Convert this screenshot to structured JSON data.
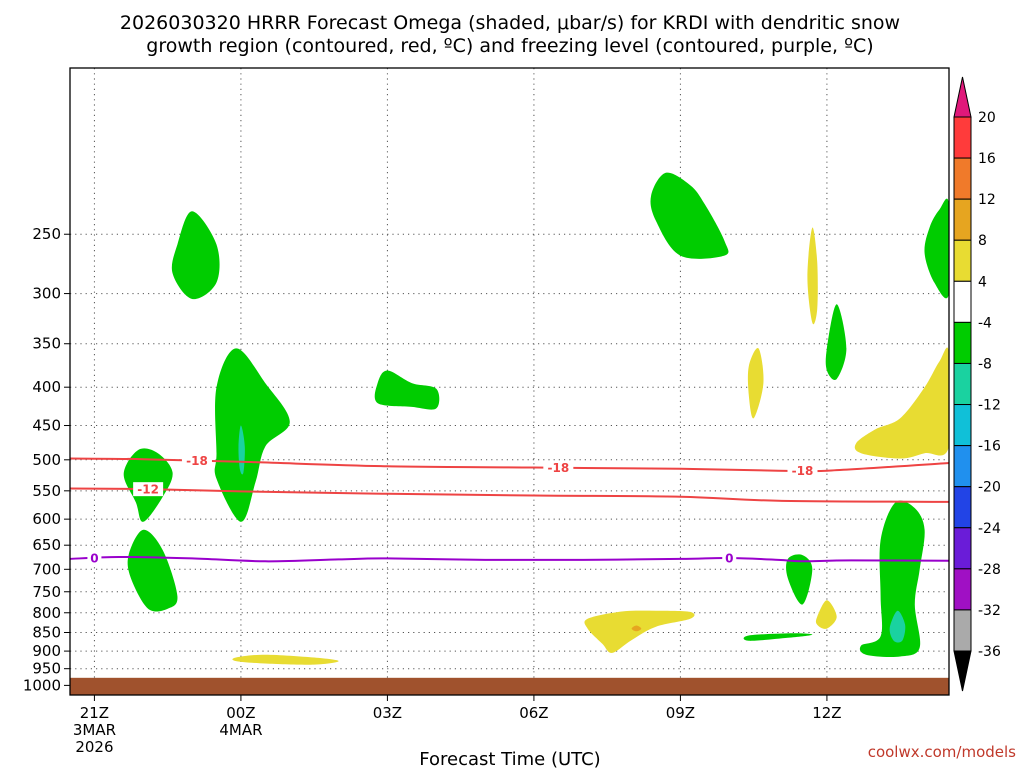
{
  "chart_data": {
    "type": "time-height contour",
    "title_line1": "2026030320 HRRR Forecast Omega (shaded, μbar/s) for KRDI with dendritic snow",
    "title_line2": "growth region (contoured, red, ºC) and freezing level (contoured, purple, ºC)",
    "xlabel": "Forecast Time (UTC)",
    "credit": "coolwx.com/models",
    "time_range_hours": [
      -0.5,
      17.5
    ],
    "pressure_range_hpa": [
      150,
      1030
    ],
    "y_ticks": [
      250,
      300,
      350,
      400,
      450,
      500,
      550,
      600,
      650,
      700,
      750,
      800,
      850,
      900,
      950,
      1000
    ],
    "x_ticks": [
      {
        "hour": 0,
        "lines": [
          "21Z",
          "3MAR",
          "2026"
        ]
      },
      {
        "hour": 3,
        "lines": [
          "00Z",
          "4MAR"
        ]
      },
      {
        "hour": 6,
        "lines": [
          "03Z"
        ]
      },
      {
        "hour": 9,
        "lines": [
          "06Z"
        ]
      },
      {
        "hour": 12,
        "lines": [
          "09Z"
        ]
      },
      {
        "hour": 15,
        "lines": [
          "12Z"
        ]
      }
    ],
    "colorbar": {
      "labels": [
        "20",
        "16",
        "12",
        "8",
        "4",
        "-4",
        "-8",
        "-12",
        "-16",
        "-20",
        "-24",
        "-28",
        "-32",
        "-36"
      ],
      "top_arrow_color": "#e0187a",
      "bottom_arrow_color": "#000000",
      "segment_colors": [
        "#ff3b3b",
        "#f07a2a",
        "#e6a520",
        "#e8dc32",
        "#ffffff",
        "#00cc00",
        "#1ad2a0",
        "#10c0d8",
        "#2090ee",
        "#2244e6",
        "#6a1cd8",
        "#a010c4",
        "#aaaaaa"
      ]
    },
    "ground": {
      "color": "#a0522d",
      "pressure_top_hpa": 977
    },
    "contours": [
      {
        "name": "-18C isotherm",
        "color": "#ee4444",
        "label": "-18",
        "label_hours": [
          2.1,
          9.5,
          14.5
        ],
        "points": [
          [
            -0.5,
            498
          ],
          [
            1,
            499
          ],
          [
            3,
            503
          ],
          [
            6,
            510
          ],
          [
            9,
            512
          ],
          [
            12,
            514
          ],
          [
            14,
            517
          ],
          [
            15,
            517
          ],
          [
            17.5,
            505
          ]
        ]
      },
      {
        "name": "-12C isotherm",
        "color": "#ee4444",
        "label": "-12",
        "label_hours": [
          1.1
        ],
        "points": [
          [
            -0.5,
            546
          ],
          [
            1,
            547
          ],
          [
            3,
            551
          ],
          [
            6,
            555
          ],
          [
            9,
            558
          ],
          [
            12,
            560
          ],
          [
            14,
            567
          ],
          [
            17.5,
            569
          ]
        ]
      },
      {
        "name": "0C freezing level",
        "color": "#9900cc",
        "label": "0",
        "label_hours": [
          0,
          13
        ],
        "points": [
          [
            -0.5,
            678
          ],
          [
            0.5,
            674
          ],
          [
            2,
            677
          ],
          [
            3.5,
            683
          ],
          [
            5,
            679
          ],
          [
            6,
            677
          ],
          [
            8,
            680
          ],
          [
            10,
            680
          ],
          [
            12,
            678
          ],
          [
            13,
            676
          ],
          [
            14,
            680
          ],
          [
            14.5,
            683
          ],
          [
            15.5,
            681
          ],
          [
            17.5,
            682
          ]
        ]
      }
    ],
    "omega_regions": [
      {
        "value_band": "-4 to -8",
        "color": "#00cc00",
        "points": [
          [
            1.7,
            258
          ],
          [
            2,
            233
          ],
          [
            2.5,
            258
          ],
          [
            2.5,
            290
          ],
          [
            2,
            305
          ],
          [
            1.6,
            282
          ]
        ]
      },
      {
        "value_band": "-4 to -8",
        "color": "#00cc00",
        "points": [
          [
            0.6,
            522
          ],
          [
            0.9,
            485
          ],
          [
            1.3,
            490
          ],
          [
            1.6,
            520
          ],
          [
            1.4,
            560
          ],
          [
            1,
            605
          ],
          [
            0.85,
            570
          ]
        ]
      },
      {
        "value_band": "-4 to -8",
        "color": "#00cc00",
        "points": [
          [
            0.7,
            670
          ],
          [
            1,
            620
          ],
          [
            1.4,
            660
          ],
          [
            1.7,
            760
          ],
          [
            1.5,
            790
          ],
          [
            1.1,
            790
          ],
          [
            0.75,
            720
          ]
        ]
      },
      {
        "value_band": "-4 to -8",
        "color": "#00cc00",
        "points": [
          [
            2.5,
            490
          ],
          [
            2.5,
            400
          ],
          [
            2.9,
            355
          ],
          [
            3.5,
            395
          ],
          [
            4,
            445
          ],
          [
            3.5,
            480
          ],
          [
            3.3,
            535
          ],
          [
            3,
            605
          ],
          [
            2.5,
            530
          ]
        ]
      },
      {
        "value_band": "-8 to -12",
        "color": "#1ad2a0",
        "points": [
          [
            2.95,
            480
          ],
          [
            3,
            450
          ],
          [
            3.08,
            480
          ],
          [
            3.05,
            520
          ],
          [
            2.98,
            515
          ]
        ]
      },
      {
        "value_band": "-4 to -8",
        "color": "#00cc00",
        "points": [
          [
            5.8,
            395
          ],
          [
            6,
            380
          ],
          [
            6.5,
            395
          ],
          [
            7,
            402
          ],
          [
            7,
            427
          ],
          [
            6.5,
            425
          ],
          [
            5.8,
            420
          ]
        ]
      },
      {
        "value_band": "-4 to -8",
        "color": "#00cc00",
        "points": [
          [
            11.4,
            222
          ],
          [
            11.7,
            207
          ],
          [
            12.2,
            215
          ],
          [
            12.5,
            228
          ],
          [
            12.9,
            255
          ],
          [
            12.9,
            267
          ],
          [
            12,
            267
          ],
          [
            11.5,
            240
          ]
        ]
      },
      {
        "value_band": "-4 to -8",
        "color": "#00cc00",
        "points": [
          [
            15,
            355
          ],
          [
            15.2,
            310
          ],
          [
            15.4,
            355
          ],
          [
            15.2,
            390
          ],
          [
            15,
            380
          ]
        ]
      },
      {
        "value_band": "-4 to -8",
        "color": "#00cc00",
        "points": [
          [
            17.5,
            228
          ],
          [
            17.5,
            300
          ],
          [
            17.2,
            290
          ],
          [
            17,
            265
          ],
          [
            17.1,
            245
          ],
          [
            17.3,
            232
          ]
        ]
      },
      {
        "value_band": "-4 to -8",
        "color": "#00cc00",
        "points": [
          [
            14.2,
            678
          ],
          [
            14.5,
            670
          ],
          [
            14.7,
            700
          ],
          [
            14.5,
            780
          ],
          [
            14.2,
            720
          ]
        ]
      },
      {
        "value_band": "-4 to -8",
        "color": "#00cc00",
        "points": [
          [
            16.1,
            640
          ],
          [
            16.4,
            570
          ],
          [
            16.8,
            580
          ],
          [
            17,
            620
          ],
          [
            16.9,
            700
          ],
          [
            16.8,
            780
          ],
          [
            16.9,
            890
          ],
          [
            16.5,
            915
          ],
          [
            15.8,
            910
          ],
          [
            15.7,
            885
          ],
          [
            16.1,
            860
          ],
          [
            16.1,
            760
          ]
        ]
      },
      {
        "value_band": "-8 to -12",
        "color": "#1ad2a0",
        "points": [
          [
            16.3,
            830
          ],
          [
            16.45,
            795
          ],
          [
            16.6,
            830
          ],
          [
            16.55,
            870
          ],
          [
            16.4,
            875
          ],
          [
            16.3,
            855
          ]
        ]
      },
      {
        "value_band": "-4 to -8",
        "color": "#00cc00",
        "points": [
          [
            13.4,
            858
          ],
          [
            14.3,
            852
          ],
          [
            14.7,
            856
          ],
          [
            14.2,
            864
          ],
          [
            13.4,
            872
          ]
        ]
      },
      {
        "value_band": "4 to 8",
        "color": "#e8dc32",
        "points": [
          [
            2.9,
            918
          ],
          [
            3.5,
            910
          ],
          [
            4.5,
            918
          ],
          [
            5,
            928
          ],
          [
            4.5,
            938
          ],
          [
            3.5,
            935
          ],
          [
            2.9,
            928
          ]
        ]
      },
      {
        "value_band": "4 to 8",
        "color": "#e8dc32",
        "points": [
          [
            10.1,
            815
          ],
          [
            10.8,
            797
          ],
          [
            11.5,
            795
          ],
          [
            12.2,
            798
          ],
          [
            12.2,
            815
          ],
          [
            11.5,
            835
          ],
          [
            11,
            870
          ],
          [
            10.6,
            905
          ],
          [
            10.4,
            880
          ],
          [
            10.1,
            840
          ]
        ]
      },
      {
        "value_band": "8 to 12",
        "color": "#e6a520",
        "points": [
          [
            11,
            840
          ],
          [
            11.1,
            832
          ],
          [
            11.2,
            840
          ],
          [
            11.1,
            847
          ]
        ]
      },
      {
        "value_band": "4 to 8",
        "color": "#e8dc32",
        "points": [
          [
            14.7,
            245
          ],
          [
            14.8,
            272
          ],
          [
            14.8,
            315
          ],
          [
            14.7,
            328
          ],
          [
            14.6,
            285
          ]
        ]
      },
      {
        "value_band": "4 to 8",
        "color": "#e8dc32",
        "points": [
          [
            13.4,
            375
          ],
          [
            13.6,
            355
          ],
          [
            13.7,
            395
          ],
          [
            13.5,
            440
          ],
          [
            13.4,
            410
          ]
        ]
      },
      {
        "value_band": "4 to 8",
        "color": "#e8dc32",
        "points": [
          [
            14.8,
            810
          ],
          [
            15,
            770
          ],
          [
            15.2,
            810
          ],
          [
            15,
            840
          ],
          [
            14.8,
            830
          ]
        ]
      },
      {
        "value_band": "4 to 8",
        "color": "#e8dc32",
        "points": [
          [
            15.6,
            475
          ],
          [
            16,
            455
          ],
          [
            16.5,
            440
          ],
          [
            17,
            400
          ],
          [
            17.3,
            370
          ],
          [
            17.5,
            360
          ],
          [
            17.5,
            480
          ],
          [
            17,
            490
          ],
          [
            16.5,
            498
          ],
          [
            15.7,
            490
          ]
        ]
      }
    ]
  }
}
